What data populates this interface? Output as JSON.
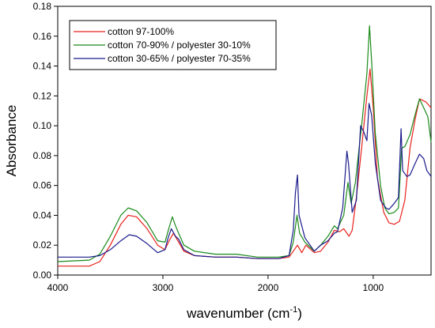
{
  "chart_data": {
    "type": "line",
    "xlabel": "wavenumber (cm",
    "xlabel_sup": "-1",
    "xlabel_tail": ")",
    "ylabel": "Absorbance",
    "xlim": [
      4000,
      450
    ],
    "ylim": [
      0.0,
      0.18
    ],
    "x_reversed": true,
    "grid": false,
    "legend_position": "top-left",
    "x_ticks": [
      4000,
      3000,
      2000,
      1000
    ],
    "x_tick_labels": [
      "4000",
      "3000",
      "2000",
      "1000"
    ],
    "y_ticks": [
      0.0,
      0.02,
      0.04,
      0.06,
      0.08,
      0.1,
      0.12,
      0.14,
      0.16,
      0.18
    ],
    "y_tick_labels": [
      "0.00",
      "0.02",
      "0.04",
      "0.06",
      "0.08",
      "0.10",
      "0.12",
      "0.14",
      "0.16",
      "0.18"
    ],
    "series": [
      {
        "name": "cotton 97-100%",
        "color": "#e8221c",
        "points": [
          [
            4000,
            0.006
          ],
          [
            3700,
            0.006
          ],
          [
            3600,
            0.009
          ],
          [
            3500,
            0.02
          ],
          [
            3400,
            0.034
          ],
          [
            3330,
            0.04
          ],
          [
            3250,
            0.039
          ],
          [
            3150,
            0.031
          ],
          [
            3050,
            0.02
          ],
          [
            2980,
            0.017
          ],
          [
            2940,
            0.023
          ],
          [
            2900,
            0.028
          ],
          [
            2850,
            0.022
          ],
          [
            2800,
            0.016
          ],
          [
            2700,
            0.013
          ],
          [
            2500,
            0.012
          ],
          [
            2300,
            0.012
          ],
          [
            2100,
            0.011
          ],
          [
            2000,
            0.011
          ],
          [
            1900,
            0.011
          ],
          [
            1800,
            0.012
          ],
          [
            1760,
            0.016
          ],
          [
            1720,
            0.02
          ],
          [
            1680,
            0.015
          ],
          [
            1640,
            0.02
          ],
          [
            1560,
            0.015
          ],
          [
            1500,
            0.016
          ],
          [
            1430,
            0.022
          ],
          [
            1370,
            0.03
          ],
          [
            1320,
            0.029
          ],
          [
            1280,
            0.031
          ],
          [
            1230,
            0.026
          ],
          [
            1200,
            0.03
          ],
          [
            1160,
            0.052
          ],
          [
            1110,
            0.085
          ],
          [
            1060,
            0.12
          ],
          [
            1030,
            0.138
          ],
          [
            1000,
            0.112
          ],
          [
            960,
            0.065
          ],
          [
            900,
            0.042
          ],
          [
            850,
            0.035
          ],
          [
            800,
            0.034
          ],
          [
            750,
            0.036
          ],
          [
            700,
            0.05
          ],
          [
            650,
            0.085
          ],
          [
            600,
            0.105
          ],
          [
            560,
            0.118
          ],
          [
            500,
            0.116
          ],
          [
            450,
            0.112
          ]
        ]
      },
      {
        "name": "cotton 70-90% / polyester 30-10%",
        "color": "#1a8a1a",
        "points": [
          [
            4000,
            0.009
          ],
          [
            3700,
            0.01
          ],
          [
            3600,
            0.014
          ],
          [
            3500,
            0.026
          ],
          [
            3400,
            0.04
          ],
          [
            3330,
            0.045
          ],
          [
            3250,
            0.043
          ],
          [
            3150,
            0.035
          ],
          [
            3050,
            0.023
          ],
          [
            2980,
            0.022
          ],
          [
            2940,
            0.032
          ],
          [
            2910,
            0.039
          ],
          [
            2880,
            0.033
          ],
          [
            2850,
            0.028
          ],
          [
            2800,
            0.02
          ],
          [
            2700,
            0.016
          ],
          [
            2500,
            0.014
          ],
          [
            2300,
            0.014
          ],
          [
            2100,
            0.012
          ],
          [
            2000,
            0.012
          ],
          [
            1900,
            0.012
          ],
          [
            1800,
            0.013
          ],
          [
            1760,
            0.022
          ],
          [
            1725,
            0.04
          ],
          [
            1700,
            0.028
          ],
          [
            1650,
            0.022
          ],
          [
            1560,
            0.016
          ],
          [
            1500,
            0.02
          ],
          [
            1430,
            0.026
          ],
          [
            1370,
            0.033
          ],
          [
            1340,
            0.031
          ],
          [
            1280,
            0.04
          ],
          [
            1240,
            0.062
          ],
          [
            1210,
            0.048
          ],
          [
            1170,
            0.062
          ],
          [
            1110,
            0.1
          ],
          [
            1060,
            0.135
          ],
          [
            1035,
            0.167
          ],
          [
            1015,
            0.143
          ],
          [
            980,
            0.095
          ],
          [
            930,
            0.06
          ],
          [
            890,
            0.045
          ],
          [
            850,
            0.041
          ],
          [
            800,
            0.042
          ],
          [
            760,
            0.045
          ],
          [
            730,
            0.085
          ],
          [
            700,
            0.086
          ],
          [
            650,
            0.094
          ],
          [
            600,
            0.108
          ],
          [
            560,
            0.118
          ],
          [
            520,
            0.112
          ],
          [
            480,
            0.106
          ],
          [
            450,
            0.089
          ]
        ]
      },
      {
        "name": "cotton 30-65% / polyester 70-35%",
        "color": "#1a1a8c",
        "points": [
          [
            4000,
            0.012
          ],
          [
            3700,
            0.012
          ],
          [
            3600,
            0.013
          ],
          [
            3500,
            0.017
          ],
          [
            3400,
            0.023
          ],
          [
            3320,
            0.027
          ],
          [
            3250,
            0.026
          ],
          [
            3150,
            0.021
          ],
          [
            3050,
            0.015
          ],
          [
            2980,
            0.017
          ],
          [
            2950,
            0.025
          ],
          [
            2920,
            0.031
          ],
          [
            2880,
            0.026
          ],
          [
            2850,
            0.024
          ],
          [
            2800,
            0.017
          ],
          [
            2700,
            0.013
          ],
          [
            2500,
            0.012
          ],
          [
            2300,
            0.012
          ],
          [
            2100,
            0.011
          ],
          [
            2000,
            0.011
          ],
          [
            1900,
            0.011
          ],
          [
            1800,
            0.013
          ],
          [
            1760,
            0.03
          ],
          [
            1740,
            0.055
          ],
          [
            1720,
            0.067
          ],
          [
            1705,
            0.04
          ],
          [
            1650,
            0.025
          ],
          [
            1560,
            0.016
          ],
          [
            1500,
            0.02
          ],
          [
            1430,
            0.023
          ],
          [
            1370,
            0.028
          ],
          [
            1340,
            0.029
          ],
          [
            1290,
            0.045
          ],
          [
            1250,
            0.083
          ],
          [
            1235,
            0.075
          ],
          [
            1200,
            0.042
          ],
          [
            1160,
            0.05
          ],
          [
            1120,
            0.1
          ],
          [
            1090,
            0.096
          ],
          [
            1060,
            0.09
          ],
          [
            1040,
            0.115
          ],
          [
            1015,
            0.107
          ],
          [
            980,
            0.075
          ],
          [
            930,
            0.05
          ],
          [
            880,
            0.045
          ],
          [
            850,
            0.044
          ],
          [
            800,
            0.048
          ],
          [
            760,
            0.052
          ],
          [
            735,
            0.098
          ],
          [
            720,
            0.07
          ],
          [
            680,
            0.066
          ],
          [
            650,
            0.067
          ],
          [
            600,
            0.075
          ],
          [
            560,
            0.081
          ],
          [
            520,
            0.078
          ],
          [
            490,
            0.07
          ],
          [
            450,
            0.066
          ]
        ]
      }
    ]
  }
}
